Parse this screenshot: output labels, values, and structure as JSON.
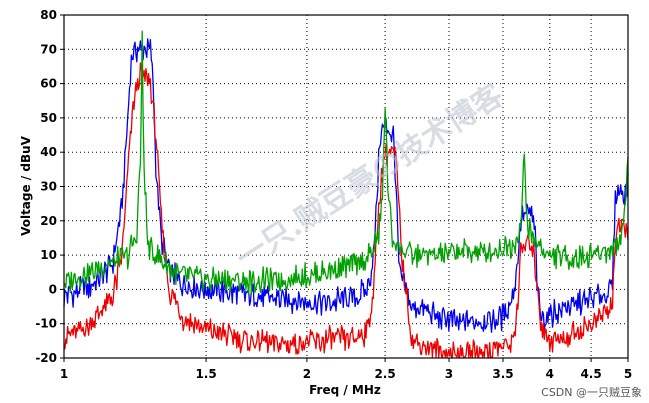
{
  "chart_data": {
    "type": "line",
    "xlabel": "Freq / MHz",
    "ylabel": "Voltage / dBuV",
    "xlim": [
      1,
      5
    ],
    "ylim": [
      -20,
      80
    ],
    "x_scale": "log",
    "grid": true,
    "grid_style": "dotted",
    "x_ticks": [
      1,
      1.5,
      2,
      2.5,
      3,
      3.5,
      4,
      4.5,
      5
    ],
    "x_tick_labels": [
      "1",
      "1.5",
      "2",
      "2.5",
      "3",
      "3.5",
      "4",
      "4.5",
      "5"
    ],
    "y_ticks": [
      -20,
      -10,
      0,
      10,
      20,
      30,
      40,
      50,
      60,
      70,
      80
    ],
    "y_tick_labels": [
      "-20",
      "-10",
      "0",
      "10",
      "20",
      "30",
      "40",
      "50",
      "60",
      "70",
      "80"
    ],
    "series": [
      {
        "color": "#0000ee",
        "x": [
          1.0,
          1.05,
          1.1,
          1.15,
          1.18,
          1.2,
          1.21,
          1.22,
          1.25,
          1.28,
          1.29,
          1.3,
          1.32,
          1.35,
          1.4,
          1.5,
          1.7,
          1.9,
          2.1,
          2.3,
          2.38,
          2.42,
          2.44,
          2.46,
          2.48,
          2.52,
          2.56,
          2.58,
          2.6,
          2.7,
          2.9,
          3.1,
          3.3,
          3.5,
          3.6,
          3.65,
          3.68,
          3.72,
          3.8,
          3.84,
          3.86,
          3.9,
          4.0,
          4.2,
          4.5,
          4.78,
          4.82,
          4.86,
          4.92,
          5.0
        ],
        "y": [
          -2,
          0,
          2,
          8,
          25,
          50,
          65,
          70,
          70,
          70,
          60,
          35,
          15,
          5,
          2,
          0,
          -2,
          -3,
          -4,
          -2,
          0,
          10,
          25,
          42,
          47,
          47,
          45,
          30,
          5,
          -5,
          -8,
          -10,
          -9,
          -8,
          -2,
          8,
          20,
          22,
          22,
          15,
          0,
          -8,
          -7,
          -5,
          -3,
          0,
          25,
          30,
          28,
          30
        ]
      },
      {
        "color": "#ee0000",
        "x": [
          1.0,
          1.05,
          1.1,
          1.15,
          1.18,
          1.2,
          1.22,
          1.24,
          1.26,
          1.28,
          1.3,
          1.32,
          1.35,
          1.4,
          1.5,
          1.7,
          1.9,
          2.1,
          2.3,
          2.38,
          2.42,
          2.46,
          2.5,
          2.54,
          2.58,
          2.62,
          2.7,
          2.9,
          3.1,
          3.3,
          3.5,
          3.6,
          3.65,
          3.68,
          3.72,
          3.8,
          3.85,
          3.9,
          4.0,
          4.2,
          4.5,
          4.78,
          4.82,
          4.86,
          4.92,
          5.0
        ],
        "y": [
          -14,
          -12,
          -8,
          -2,
          10,
          35,
          55,
          62,
          62,
          60,
          45,
          20,
          0,
          -8,
          -12,
          -15,
          -16,
          -15,
          -14,
          -12,
          0,
          28,
          40,
          40,
          38,
          10,
          -15,
          -18,
          -19,
          -18,
          -17,
          -15,
          -5,
          10,
          13,
          13,
          5,
          -10,
          -15,
          -14,
          -10,
          -5,
          15,
          18,
          17,
          18
        ]
      },
      {
        "color": "#00a000",
        "x": [
          1.0,
          1.05,
          1.1,
          1.15,
          1.2,
          1.23,
          1.245,
          1.25,
          1.255,
          1.27,
          1.3,
          1.35,
          1.4,
          1.5,
          1.7,
          1.9,
          2.1,
          2.3,
          2.4,
          2.45,
          2.48,
          2.5,
          2.52,
          2.55,
          2.6,
          2.7,
          2.9,
          3.1,
          3.3,
          3.5,
          3.6,
          3.68,
          3.72,
          3.74,
          3.76,
          3.8,
          3.9,
          4.0,
          4.2,
          4.5,
          4.8,
          4.9,
          4.96,
          5.0
        ],
        "y": [
          2,
          4,
          6,
          8,
          10,
          15,
          40,
          74,
          40,
          12,
          10,
          6,
          4,
          3,
          2,
          3,
          5,
          7,
          10,
          15,
          25,
          56,
          30,
          15,
          12,
          10,
          10,
          11,
          11,
          12,
          13,
          18,
          38,
          25,
          18,
          15,
          12,
          10,
          9,
          10,
          12,
          15,
          25,
          40
        ]
      }
    ]
  },
  "watermark_text": "一只.贼豆豪の技术博客",
  "credit_text": "CSDN @一只贼豆象"
}
